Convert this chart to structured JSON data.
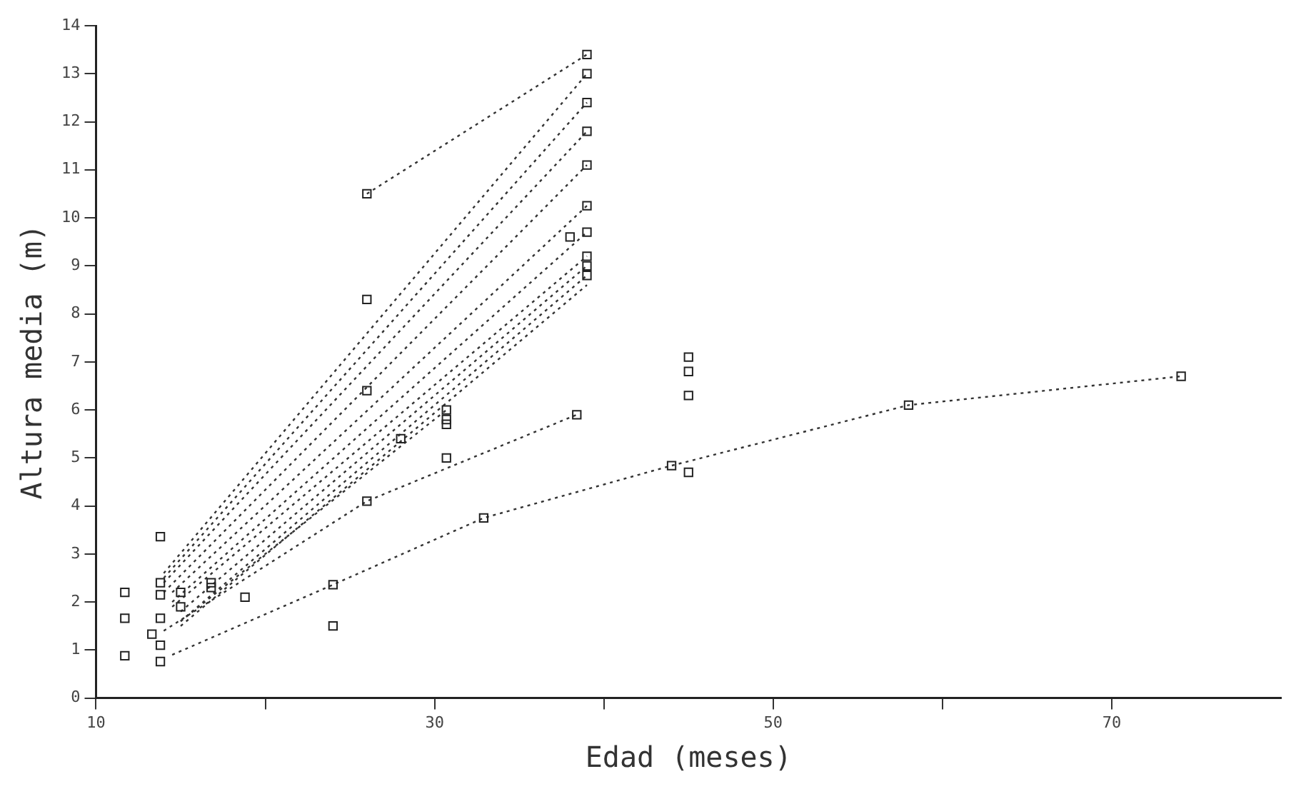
{
  "chart_data": {
    "type": "scatter",
    "xlabel": "Edad (meses)",
    "ylabel": "Altura media (m)",
    "xlim": [
      10,
      80
    ],
    "ylim": [
      0,
      14
    ],
    "xticks": [
      10,
      {
        "value": 20,
        "label": null
      },
      30,
      {
        "value": 40,
        "label": null
      },
      50,
      {
        "value": 60,
        "label": null
      },
      70
    ],
    "yticks": [
      0,
      1,
      2,
      3,
      4,
      5,
      6,
      7,
      8,
      9,
      10,
      11,
      12,
      13,
      14
    ],
    "grid": false,
    "legend": false,
    "line_style": "dotted",
    "series": [
      {
        "type": "scatter",
        "marker": "square",
        "color": "#222222",
        "x": [
          11.7,
          11.7,
          11.7,
          13.8,
          13.8,
          13.8,
          13.8,
          13.3,
          13.8,
          13.8,
          15,
          15,
          16.8,
          16.8,
          18.8,
          24,
          24,
          26,
          26,
          26,
          26,
          28,
          30.7,
          30.7,
          30.7,
          30.7,
          32.9,
          38.4,
          39,
          39,
          39,
          39,
          39,
          39,
          38,
          39,
          39,
          39,
          39,
          44,
          45,
          45,
          45,
          45,
          58,
          74.1
        ],
        "values": [
          2.2,
          1.66,
          0.88,
          3.36,
          2.4,
          2.15,
          1.66,
          1.33,
          1.1,
          0.76,
          2.2,
          1.9,
          2.4,
          2.3,
          2.1,
          2.36,
          1.5,
          10.5,
          8.3,
          6.4,
          4.1,
          5.4,
          6.0,
          5.8,
          5.7,
          5.0,
          3.75,
          5.9,
          13.4,
          13.0,
          12.4,
          11.8,
          11.1,
          10.25,
          9.6,
          9.7,
          9.2,
          9.0,
          8.8,
          4.84,
          4.7,
          7.1,
          6.8,
          6.3,
          6.1,
          6.7
        ]
      },
      {
        "type": "line",
        "color": "#333333",
        "x": [
          26,
          39
        ],
        "values": [
          10.5,
          13.4
        ]
      },
      {
        "type": "line",
        "color": "#333333",
        "x": [
          14,
          39
        ],
        "values": [
          2.6,
          13.0
        ]
      },
      {
        "type": "line",
        "color": "#333333",
        "x": [
          14,
          39
        ],
        "values": [
          2.5,
          12.4
        ]
      },
      {
        "type": "line",
        "color": "#333333",
        "x": [
          14,
          39
        ],
        "values": [
          2.4,
          11.8
        ]
      },
      {
        "type": "line",
        "color": "#333333",
        "x": [
          14,
          39
        ],
        "values": [
          2.2,
          11.1
        ]
      },
      {
        "type": "line",
        "color": "#333333",
        "x": [
          14.5,
          39
        ],
        "values": [
          2.2,
          10.25
        ]
      },
      {
        "type": "line",
        "color": "#333333",
        "x": [
          14.5,
          39
        ],
        "values": [
          2.0,
          9.7
        ]
      },
      {
        "type": "line",
        "color": "#333333",
        "x": [
          14.5,
          39
        ],
        "values": [
          1.9,
          9.2
        ]
      },
      {
        "type": "line",
        "color": "#333333",
        "x": [
          15,
          39
        ],
        "values": [
          1.8,
          9.0
        ]
      },
      {
        "type": "line",
        "color": "#333333",
        "x": [
          15,
          39
        ],
        "values": [
          1.6,
          8.8
        ]
      },
      {
        "type": "line",
        "color": "#333333",
        "x": [
          15,
          39
        ],
        "values": [
          1.5,
          8.6
        ]
      },
      {
        "type": "line",
        "color": "#333333",
        "x": [
          15,
          30.7
        ],
        "values": [
          1.6,
          6.0
        ]
      },
      {
        "type": "line",
        "color": "#333333",
        "x": [
          14,
          26,
          38.4
        ],
        "values": [
          1.4,
          4.1,
          5.9
        ]
      },
      {
        "type": "line",
        "color": "#333333",
        "x": [
          14.5,
          24,
          32.9,
          44,
          58,
          74.1
        ],
        "values": [
          0.9,
          2.36,
          3.75,
          4.84,
          6.1,
          6.7
        ]
      }
    ]
  }
}
